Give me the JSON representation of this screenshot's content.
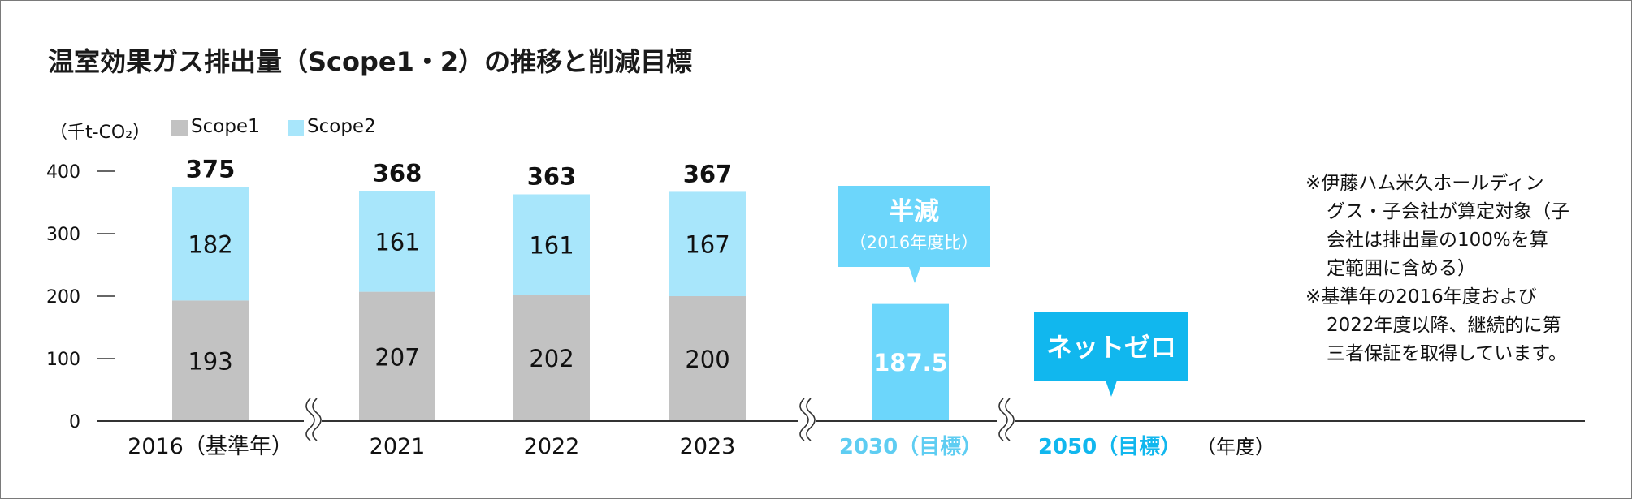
{
  "title": "温室効果ガス排出量（Scope1・2）の推移と削減目標",
  "unit_label": "（千t-CO₂）",
  "legend": [
    {
      "name": "Scope1",
      "color": "#c2c2c2"
    },
    {
      "name": "Scope2",
      "color": "#a8e6fb"
    }
  ],
  "notes": [
    "※伊藤ハム米久ホールディン",
    "グス・子会社が算定対象（子",
    "会社は排出量の100%を算",
    "定範囲に含める）",
    "※基準年の2016年度および",
    "2022年度以降、継続的に第",
    "三者保証を取得しています。"
  ],
  "year_unit": "（年度）",
  "colors": {
    "scope1": "#c2c2c2",
    "scope2": "#a8e6fb",
    "target_bar": "#6cd6fb",
    "target_text": "#5ecdf2",
    "callout_halve": "#6cd6fb",
    "callout_netzero": "#11b7ee",
    "axis": "#333333"
  },
  "chart_data": {
    "type": "bar",
    "stacked": true,
    "ylim": [
      0,
      400
    ],
    "yticks": [
      "400",
      "300",
      "200",
      "100",
      "0"
    ],
    "categories": [
      "2016（基準年）",
      "2021",
      "2022",
      "2023",
      "2030（目標）",
      "2050（目標）"
    ],
    "series": [
      {
        "name": "Scope1",
        "values": [
          193,
          207,
          202,
          200,
          null,
          null
        ],
        "labels": [
          "193",
          "207",
          "202",
          "200",
          "",
          ""
        ]
      },
      {
        "name": "Scope2",
        "values": [
          182,
          161,
          161,
          167,
          null,
          null
        ],
        "labels": [
          "182",
          "161",
          "161",
          "167",
          "",
          ""
        ]
      }
    ],
    "totals": [
      "375",
      "368",
      "363",
      "367",
      "",
      ""
    ],
    "target": {
      "category": "2030（目標）",
      "value": 187.5,
      "label": "187.5"
    },
    "callouts": {
      "halve_title": "半減",
      "halve_sub": "（2016年度比）",
      "netzero": "ネットゼロ"
    },
    "axis_breaks": 3
  }
}
